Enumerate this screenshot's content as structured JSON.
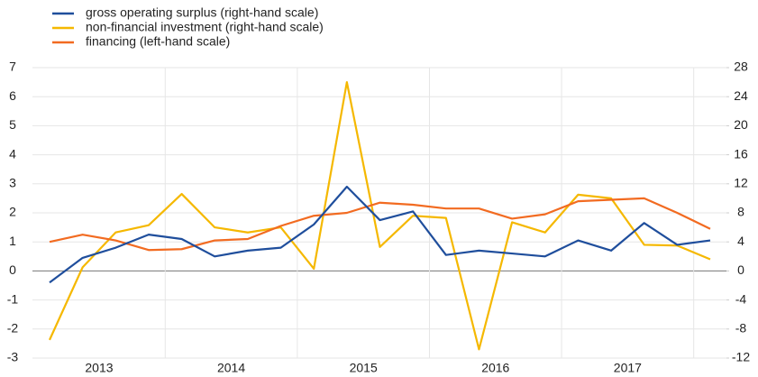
{
  "chart_data": {
    "type": "line",
    "categories": [
      null,
      null,
      null,
      null,
      null,
      null,
      null,
      null,
      null,
      null,
      null,
      null,
      null,
      null,
      null,
      null,
      null,
      null,
      null,
      null,
      null
    ],
    "year_labels": [
      "2013",
      "2014",
      "2015",
      "2016",
      "2017"
    ],
    "series": [
      {
        "name": "gross operating surplus (right-hand scale)",
        "color": "#1f4e9c",
        "axis": "y2",
        "values": [
          -1.6,
          1.8,
          3.2,
          5.0,
          4.4,
          2.0,
          2.8,
          3.2,
          6.4,
          11.6,
          7.0,
          8.2,
          2.2,
          2.8,
          2.4,
          2.0,
          4.2,
          2.8,
          6.6,
          3.6,
          4.2
        ]
      },
      {
        "name": "non-financial investment (right-hand scale)",
        "color": "#f5b800",
        "axis": "y2",
        "values": [
          -9.5,
          0.5,
          5.3,
          6.3,
          10.6,
          6.0,
          5.3,
          6.0,
          0.3,
          26.0,
          3.3,
          7.6,
          7.3,
          -10.8,
          6.7,
          5.3,
          10.5,
          10.0,
          3.6,
          3.5,
          1.6
        ]
      },
      {
        "name": "financing (left-hand scale)",
        "color": "#f26b21",
        "axis": "y",
        "values": [
          1.0,
          1.25,
          1.05,
          0.72,
          0.75,
          1.05,
          1.1,
          1.55,
          1.9,
          2.0,
          2.35,
          2.28,
          2.15,
          2.15,
          1.8,
          1.95,
          2.4,
          2.45,
          2.5,
          2.0,
          1.45
        ]
      }
    ],
    "ylim": [
      -3,
      7
    ],
    "yticks": [
      -3,
      -2,
      -1,
      0,
      1,
      2,
      3,
      4,
      5,
      6,
      7
    ],
    "y2lim": [
      -12,
      28
    ],
    "y2ticks": [
      -12,
      -8,
      -4,
      0,
      4,
      8,
      12,
      16,
      20,
      24,
      28
    ],
    "grid": true
  }
}
